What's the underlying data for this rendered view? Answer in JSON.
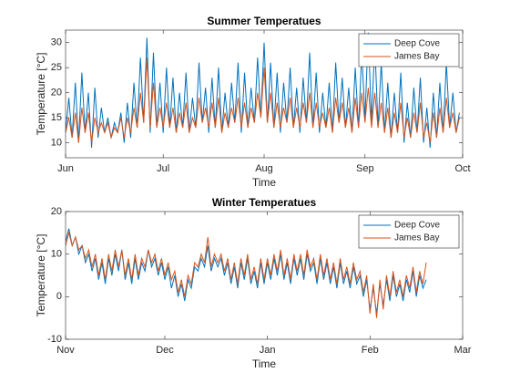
{
  "chart_data": [
    {
      "type": "line",
      "title": "Summer Temperatues",
      "xlabel": "Time",
      "ylabel": "Temperature [°C]",
      "x": [
        0,
        1,
        2,
        3,
        4,
        5,
        6,
        7,
        8,
        9,
        10,
        11,
        12,
        13,
        14,
        15,
        16,
        17,
        18,
        19,
        20,
        21,
        22,
        23,
        24,
        25,
        26,
        27,
        28,
        29,
        30,
        31,
        32,
        33,
        34,
        35,
        36,
        37,
        38,
        39,
        40,
        41,
        42,
        43,
        44,
        45,
        46,
        47,
        48,
        49,
        50,
        51,
        52,
        53,
        54,
        55,
        56,
        57,
        58,
        59,
        60,
        61,
        62,
        63,
        64,
        65,
        66,
        67,
        68,
        69,
        70,
        71,
        72,
        73,
        74,
        75,
        76,
        77,
        78,
        79,
        80,
        81,
        82,
        83,
        84,
        85,
        86,
        87,
        88,
        89,
        90,
        91,
        92,
        93,
        94,
        95,
        96,
        97,
        98,
        99,
        100,
        101,
        102,
        103,
        104,
        105,
        106,
        107,
        108,
        109,
        110,
        111,
        112,
        113,
        114,
        115,
        116,
        117,
        118,
        119,
        120,
        121
      ],
      "series": [
        {
          "name": "Deep Cove",
          "color": "#0072bd",
          "values": [
            12,
            19,
            11,
            22,
            10,
            24,
            12,
            20,
            9,
            21,
            11,
            17,
            12,
            15,
            11,
            14,
            12,
            16,
            10,
            18,
            11,
            22,
            13,
            27,
            14,
            31,
            12,
            28,
            13,
            22,
            12,
            25,
            13,
            23,
            12,
            20,
            13,
            24,
            12,
            19,
            13,
            26,
            14,
            21,
            12,
            23,
            13,
            25,
            12,
            20,
            13,
            22,
            14,
            26,
            12,
            24,
            13,
            21,
            14,
            27,
            15,
            30,
            14,
            26,
            13,
            24,
            12,
            22,
            14,
            25,
            13,
            21,
            12,
            23,
            14,
            28,
            13,
            24,
            12,
            20,
            13,
            22,
            12,
            26,
            14,
            23,
            13,
            21,
            12,
            25,
            13,
            28,
            15,
            32,
            14,
            30,
            13,
            26,
            12,
            22,
            11,
            20,
            12,
            24,
            10,
            18,
            11,
            21,
            12,
            23,
            10,
            17,
            9,
            20,
            11,
            22,
            12,
            26,
            13,
            20,
            12,
            16
          ]
        },
        {
          "name": "James Bay",
          "color": "#d95319",
          "values": [
            12,
            15,
            11,
            16,
            10,
            17,
            12,
            16,
            10,
            15,
            12,
            14,
            12,
            14,
            11,
            13,
            12,
            15,
            11,
            15,
            12,
            17,
            13,
            20,
            14,
            27,
            13,
            22,
            13,
            17,
            13,
            18,
            13,
            17,
            12,
            16,
            13,
            18,
            12,
            15,
            13,
            19,
            14,
            17,
            13,
            18,
            13,
            19,
            12,
            16,
            13,
            17,
            14,
            19,
            13,
            18,
            13,
            17,
            14,
            20,
            15,
            25,
            14,
            20,
            13,
            18,
            13,
            17,
            14,
            19,
            13,
            17,
            13,
            18,
            14,
            20,
            13,
            18,
            13,
            16,
            13,
            17,
            12,
            19,
            14,
            18,
            13,
            17,
            12,
            19,
            13,
            20,
            14,
            21,
            13,
            20,
            13,
            18,
            12,
            17,
            11,
            16,
            12,
            18,
            11,
            15,
            11,
            16,
            12,
            18,
            11,
            14,
            10,
            16,
            11,
            17,
            12,
            19,
            13,
            16,
            12,
            15
          ]
        }
      ],
      "xlim": [
        0,
        122
      ],
      "xticks": [
        {
          "value": 0,
          "label": "Jun"
        },
        {
          "value": 30,
          "label": "Jul"
        },
        {
          "value": 61,
          "label": "Aug"
        },
        {
          "value": 92,
          "label": "Sep"
        },
        {
          "value": 122,
          "label": "Oct"
        }
      ],
      "ylim": [
        7,
        32.5
      ],
      "yticks": [
        10,
        15,
        20,
        25,
        30
      ],
      "legend": "northeast"
    },
    {
      "type": "line",
      "title": "Winter Temperatues",
      "xlabel": "Time",
      "ylabel": "Temperature [°C]",
      "x": [
        0,
        1,
        2,
        3,
        4,
        5,
        6,
        7,
        8,
        9,
        10,
        11,
        12,
        13,
        14,
        15,
        16,
        17,
        18,
        19,
        20,
        21,
        22,
        23,
        24,
        25,
        26,
        27,
        28,
        29,
        30,
        31,
        32,
        33,
        34,
        35,
        36,
        37,
        38,
        39,
        40,
        41,
        42,
        43,
        44,
        45,
        46,
        47,
        48,
        49,
        50,
        51,
        52,
        53,
        54,
        55,
        56,
        57,
        58,
        59,
        60,
        61,
        62,
        63,
        64,
        65,
        66,
        67,
        68,
        69,
        70,
        71,
        72,
        73,
        74,
        75,
        76,
        77,
        78,
        79,
        80,
        81,
        82,
        83,
        84,
        85,
        86,
        87,
        88,
        89,
        90,
        91,
        92,
        93,
        94,
        95,
        96,
        97,
        98,
        99,
        100,
        101,
        102,
        103,
        104,
        105,
        106,
        107,
        108,
        109
      ],
      "series": [
        {
          "name": "Deep Cove",
          "color": "#0072bd",
          "values": [
            13,
            16,
            12,
            14,
            10,
            12,
            8,
            10,
            6,
            9,
            4,
            8,
            3,
            9,
            5,
            10,
            6,
            11,
            4,
            8,
            3,
            9,
            4,
            8,
            6,
            11,
            7,
            9,
            5,
            8,
            4,
            7,
            2,
            5,
            0,
            3,
            -1,
            4,
            2,
            7,
            6,
            9,
            7,
            12,
            6,
            9,
            7,
            9,
            5,
            8,
            3,
            7,
            2,
            8,
            4,
            9,
            3,
            6,
            2,
            8,
            3,
            8,
            4,
            9,
            5,
            10,
            4,
            8,
            3,
            9,
            5,
            9,
            4,
            10,
            6,
            8,
            3,
            9,
            4,
            8,
            3,
            7,
            2,
            8,
            3,
            6,
            2,
            7,
            3,
            5,
            0,
            4,
            -3,
            2,
            -4,
            3,
            -2,
            4,
            -1,
            5,
            0,
            3,
            -1,
            4,
            1,
            6,
            0,
            5,
            2,
            4
          ]
        },
        {
          "name": "James Bay",
          "color": "#d95319",
          "values": [
            12,
            15,
            12,
            14,
            11,
            12,
            9,
            11,
            7,
            10,
            5,
            9,
            4,
            10,
            6,
            11,
            7,
            11,
            5,
            9,
            4,
            10,
            5,
            9,
            7,
            11,
            8,
            10,
            6,
            9,
            5,
            8,
            4,
            6,
            1,
            4,
            0,
            5,
            3,
            8,
            7,
            10,
            8,
            14,
            7,
            10,
            8,
            10,
            6,
            9,
            4,
            8,
            3,
            9,
            5,
            10,
            4,
            7,
            3,
            9,
            4,
            9,
            5,
            10,
            6,
            11,
            5,
            9,
            4,
            10,
            6,
            10,
            5,
            11,
            7,
            9,
            4,
            10,
            5,
            9,
            4,
            8,
            3,
            9,
            4,
            7,
            3,
            8,
            4,
            6,
            1,
            5,
            -4,
            3,
            -5,
            4,
            -3,
            5,
            0,
            6,
            1,
            4,
            0,
            5,
            2,
            7,
            1,
            6,
            3,
            8
          ]
        }
      ],
      "xlim": [
        0,
        120
      ],
      "xticks": [
        {
          "value": 0,
          "label": "Nov"
        },
        {
          "value": 30,
          "label": "Dec"
        },
        {
          "value": 61,
          "label": "Jan"
        },
        {
          "value": 92,
          "label": "Feb"
        },
        {
          "value": 120,
          "label": "Mar"
        }
      ],
      "ylim": [
        -10,
        20
      ],
      "yticks": [
        -10,
        0,
        10,
        20
      ],
      "legend": "northeast"
    }
  ]
}
